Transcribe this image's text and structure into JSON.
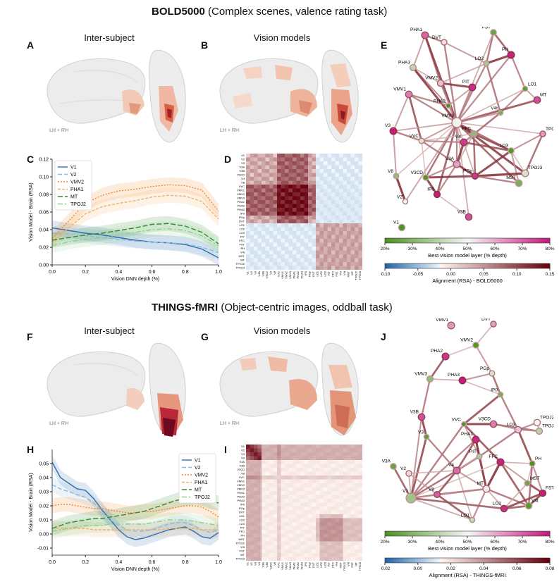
{
  "top": {
    "dataset": "BOLD5000",
    "desc": "(Complex scenes, valence rating task)",
    "labels": {
      "A": "A",
      "B": "B",
      "C": "C",
      "D": "D",
      "E": "E"
    },
    "brain_titles": [
      "Inter-subject",
      "Vision models"
    ],
    "hemi": "LH + RH",
    "colorbar_layer": {
      "ticks": [
        "20%",
        "30%",
        "40%",
        "50%",
        "60%",
        "70%",
        "80%"
      ],
      "label": "Best vision model layer (% depth)"
    },
    "colorbar_align": {
      "ticks": [
        "-0.10",
        "-0.05",
        "0.00",
        "0.05",
        "0.10",
        "0.15"
      ],
      "label": "Alignment (RSA) - BOLD5000"
    },
    "rois": [
      "V1",
      "V2",
      "V3",
      "V3A",
      "V3B",
      "V3CD",
      "V4",
      "V8",
      "VVC",
      "VMV1",
      "VMV2",
      "VMV3",
      "PHA1",
      "PHA2",
      "PHA3",
      "IP0",
      "PGp",
      "DVT",
      "LO1",
      "LO2",
      "LO3",
      "PIT",
      "FFC",
      "FST",
      "PH",
      "V4t",
      "MST",
      "MT",
      "TPOJ2",
      "TPOJ3"
    ],
    "network_nodes": [
      "PHA1",
      "DVT",
      "FST",
      "PH",
      "LO2",
      "PHA3",
      "PIT",
      "LO1",
      "VMV2",
      "VMV1",
      "PHA2",
      "MT",
      "VMV3",
      "V4t",
      "V3",
      "FFC",
      "VVC",
      "V4",
      "LO3",
      "TPOJ2",
      "V3A",
      "V3CD",
      "PGp",
      "TPOJ3",
      "V8",
      "IP0",
      "MST",
      "V2",
      "V3B",
      "V1"
    ]
  },
  "bottom": {
    "dataset": "THINGS-fMRI",
    "desc": "(Object-centric images, oddball task)",
    "labels": {
      "F": "F",
      "G": "G",
      "H": "H",
      "I": "I",
      "J": "J"
    },
    "brain_titles": [
      "Inter-subject",
      "Vision models"
    ],
    "hemi": "LH + RH",
    "colorbar_layer": {
      "ticks": [
        "20%",
        "30%",
        "40%",
        "50%",
        "60%",
        "70%",
        "80%"
      ],
      "label": "Best vision model layer (% depth)"
    },
    "colorbar_align": {
      "ticks": [
        "-0.02",
        "0.00",
        "0.02",
        "0.04",
        "0.06",
        "0.08"
      ],
      "label": "Alignment (RSA) - THINGS-fMRI"
    },
    "rois": [
      "V1",
      "V2",
      "V3",
      "V4",
      "V3A",
      "V3B",
      "V3CD",
      "V8",
      "VVC",
      "VMV1",
      "VMV2",
      "VMV3",
      "PHA1",
      "PHA2",
      "PHA3",
      "IP0",
      "PGp",
      "DVT",
      "LO1",
      "LO2",
      "LO3",
      "PIT",
      "FFC",
      "PH",
      "MST",
      "TPOJ2",
      "V4t",
      "FST",
      "MT",
      "TPOJ3"
    ],
    "network_nodes": [
      "VMV1",
      "DVT",
      "VMV2",
      "PHA2",
      "PGp",
      "VMV3",
      "PHA3",
      "IP0",
      "TPOJ2",
      "V3B",
      "VVC",
      "V3CD",
      "LO3",
      "V3",
      "PHA1",
      "TPOJ3",
      "PIT",
      "FFC",
      "V3A",
      "V2",
      "V4",
      "PH",
      "V8",
      "MT",
      "MST",
      "FST",
      "V1",
      "LO1",
      "LO2",
      "V4t"
    ]
  },
  "chart_data": [
    {
      "id": "C",
      "type": "line",
      "xlabel": "Vision DNN depth (%)",
      "ylabel": "Vision Model - Brain (RSA)",
      "xlim": [
        0,
        1
      ],
      "ylim": [
        0,
        0.12
      ],
      "xticks": [
        "0.0",
        "0.2",
        "0.4",
        "0.6",
        "0.8",
        "1.0"
      ],
      "yticks": [
        "0.00",
        "0.02",
        "0.04",
        "0.06",
        "0.08",
        "0.10",
        "0.12"
      ],
      "x": [
        0,
        0.1,
        0.2,
        0.3,
        0.4,
        0.5,
        0.6,
        0.7,
        0.8,
        0.9,
        1.0
      ],
      "series": [
        {
          "name": "V1",
          "color": "#2f6fb0",
          "dash": "",
          "values": [
            0.042,
            0.039,
            0.036,
            0.034,
            0.031,
            0.028,
            0.026,
            0.025,
            0.023,
            0.018,
            0.008
          ]
        },
        {
          "name": "V2",
          "color": "#8fb8db",
          "dash": "6,3",
          "values": [
            0.036,
            0.035,
            0.033,
            0.031,
            0.029,
            0.027,
            0.026,
            0.025,
            0.024,
            0.02,
            0.014
          ]
        },
        {
          "name": "VMV2",
          "color": "#f08a24",
          "dash": "2,2",
          "values": [
            0.03,
            0.05,
            0.07,
            0.079,
            0.084,
            0.086,
            0.089,
            0.091,
            0.09,
            0.085,
            0.061
          ]
        },
        {
          "name": "PHA1",
          "color": "#f4b066",
          "dash": "4,2",
          "values": [
            0.026,
            0.042,
            0.058,
            0.066,
            0.07,
            0.073,
            0.077,
            0.079,
            0.078,
            0.072,
            0.052
          ]
        },
        {
          "name": "MT",
          "color": "#2e8b2e",
          "dash": "7,3",
          "values": [
            0.028,
            0.031,
            0.034,
            0.036,
            0.039,
            0.042,
            0.046,
            0.047,
            0.044,
            0.037,
            0.024
          ]
        },
        {
          "name": "TPOJ2",
          "color": "#8fcf8f",
          "dash": "7,3,2,3",
          "values": [
            0.022,
            0.026,
            0.029,
            0.031,
            0.034,
            0.037,
            0.04,
            0.041,
            0.039,
            0.033,
            0.022
          ]
        }
      ]
    },
    {
      "id": "H",
      "type": "line",
      "xlabel": "Vision DNN depth (%)",
      "ylabel": "Vision Model - Brain (RSA)",
      "xlim": [
        0,
        1
      ],
      "ylim": [
        -0.015,
        0.06
      ],
      "xticks": [
        "0.0",
        "0.2",
        "0.4",
        "0.6",
        "0.8",
        "1.0"
      ],
      "yticks": [
        "-0.01",
        "0.00",
        "0.01",
        "0.02",
        "0.03",
        "0.04",
        "0.05"
      ],
      "x": [
        0,
        0.05,
        0.1,
        0.15,
        0.2,
        0.25,
        0.3,
        0.35,
        0.4,
        0.45,
        0.5,
        0.55,
        0.6,
        0.65,
        0.7,
        0.75,
        0.8,
        0.85,
        0.9,
        0.95,
        1.0
      ],
      "series": [
        {
          "name": "V1",
          "color": "#2f6fb0",
          "dash": "",
          "values": [
            0.051,
            0.04,
            0.036,
            0.032,
            0.031,
            0.025,
            0.017,
            0.01,
            0.003,
            -0.002,
            -0.004,
            -0.003,
            -0.001,
            0.001,
            0.003,
            0.004,
            0.005,
            0.002,
            -0.002,
            -0.003,
            0.001
          ]
        },
        {
          "name": "V2",
          "color": "#8fb8db",
          "dash": "6,3",
          "values": [
            0.035,
            0.032,
            0.03,
            0.028,
            0.026,
            0.022,
            0.016,
            0.01,
            0.006,
            0.003,
            0.002,
            0.002,
            0.003,
            0.005,
            0.007,
            0.008,
            0.008,
            0.006,
            0.003,
            0.001,
            0.003
          ]
        },
        {
          "name": "VMV2",
          "color": "#f08a24",
          "dash": "2,2",
          "values": [
            0.02,
            0.021,
            0.021,
            0.02,
            0.019,
            0.018,
            0.018,
            0.017,
            0.016,
            0.015,
            0.015,
            0.016,
            0.016,
            0.017,
            0.018,
            0.019,
            0.02,
            0.02,
            0.019,
            0.016,
            0.012
          ]
        },
        {
          "name": "PHA1",
          "color": "#f4b066",
          "dash": "4,2",
          "values": [
            0.004,
            0.004,
            0.004,
            0.004,
            0.004,
            0.003,
            0.003,
            0.003,
            0.003,
            0.003,
            0.003,
            0.003,
            0.003,
            0.003,
            0.004,
            0.004,
            0.004,
            0.004,
            0.003,
            0.003,
            0.003
          ]
        },
        {
          "name": "MT",
          "color": "#2e8b2e",
          "dash": "7,3",
          "values": [
            0.004,
            0.006,
            0.008,
            0.009,
            0.01,
            0.011,
            0.011,
            0.012,
            0.013,
            0.014,
            0.015,
            0.016,
            0.018,
            0.02,
            0.022,
            0.024,
            0.025,
            0.026,
            0.025,
            0.023,
            0.022
          ]
        },
        {
          "name": "TPOJ2",
          "color": "#8fcf8f",
          "dash": "7,3,2,3",
          "values": [
            0.002,
            0.003,
            0.004,
            0.005,
            0.006,
            0.006,
            0.006,
            0.007,
            0.007,
            0.007,
            0.007,
            0.007,
            0.008,
            0.009,
            0.01,
            0.01,
            0.01,
            0.009,
            0.008,
            0.007,
            0.006
          ]
        }
      ]
    }
  ]
}
